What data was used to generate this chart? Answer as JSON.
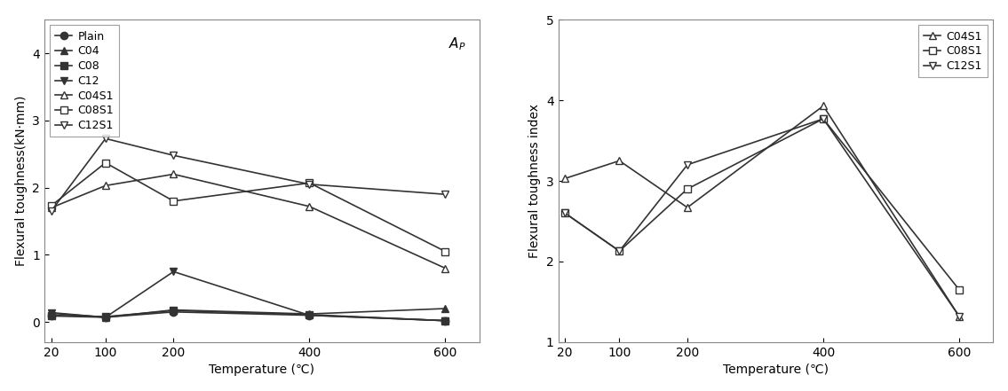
{
  "temperatures": [
    20,
    100,
    200,
    400,
    600
  ],
  "left_chart": {
    "ylabel": "Flexural toughness(kN·mm)",
    "xlabel": "Temperature (℃)",
    "ylim": [
      -0.3,
      4.5
    ],
    "yticks": [
      0,
      1,
      2,
      3,
      4
    ],
    "series": {
      "Plain": {
        "values": [
          0.09,
          0.07,
          0.15,
          0.1,
          0.02
        ],
        "marker": "o",
        "filled": true
      },
      "C04": {
        "values": [
          0.13,
          0.07,
          0.18,
          0.12,
          0.2
        ],
        "marker": "^",
        "filled": true
      },
      "C08": {
        "values": [
          0.1,
          0.08,
          0.17,
          0.11,
          0.02
        ],
        "marker": "s",
        "filled": true
      },
      "C12": {
        "values": [
          0.14,
          0.07,
          0.75,
          0.1,
          0.02
        ],
        "marker": "v",
        "filled": true
      },
      "C04S1": {
        "values": [
          1.7,
          2.03,
          2.2,
          1.72,
          0.8
        ],
        "marker": "^",
        "filled": false
      },
      "C08S1": {
        "values": [
          1.73,
          2.37,
          1.8,
          2.07,
          1.05
        ],
        "marker": "s",
        "filled": false
      },
      "C12S1": {
        "values": [
          1.65,
          2.73,
          2.48,
          2.05,
          1.9
        ],
        "marker": "v",
        "filled": false
      }
    }
  },
  "right_chart": {
    "ylabel": "Flexural toughness index",
    "xlabel": "Temperature (℃)",
    "ylim": [
      1,
      5
    ],
    "yticks": [
      1,
      2,
      3,
      4,
      5
    ],
    "series": {
      "C04S1": {
        "values": [
          3.03,
          3.25,
          2.67,
          3.93,
          1.32
        ],
        "marker": "^",
        "filled": false
      },
      "C08S1": {
        "values": [
          2.6,
          2.13,
          2.9,
          3.77,
          1.65
        ],
        "marker": "s",
        "filled": false
      },
      "C12S1": {
        "values": [
          2.6,
          2.13,
          3.2,
          3.77,
          1.32
        ],
        "marker": "v",
        "filled": false
      }
    }
  },
  "line_color": "#333333",
  "markersize": 6,
  "linewidth": 1.2,
  "fontsize": 10,
  "legend_fontsize": 9,
  "tick_fontsize": 10,
  "bg_color": "#ffffff"
}
